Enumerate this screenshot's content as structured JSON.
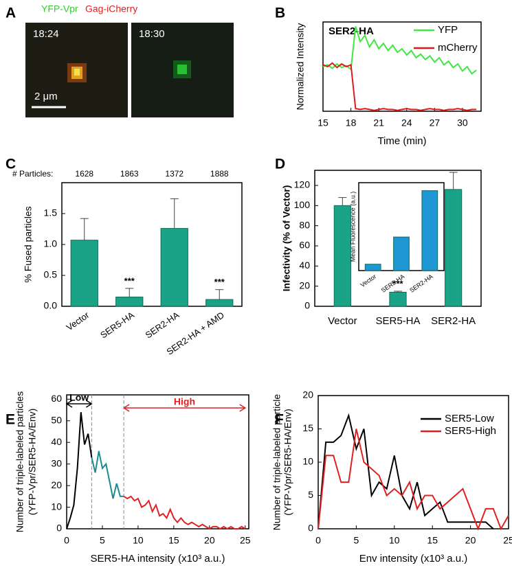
{
  "panel_a": {
    "panel": "A",
    "channels": [
      "YFP-Vpr",
      "Gag-iCherry"
    ],
    "frames": [
      "18:24",
      "18:30"
    ],
    "scale_bar": "2 μm"
  },
  "chart_data": [
    {
      "type": "line",
      "panel": "B",
      "title": "SER2-HA",
      "y_label": "Normalized Intensity",
      "x_label": "Time (min)",
      "xlim": [
        15,
        32
      ],
      "xticks": [
        15,
        18,
        21,
        24,
        27,
        30
      ],
      "ylim": [
        0,
        1
      ],
      "x": [
        15,
        15.5,
        16,
        16.5,
        17,
        17.5,
        18,
        18.5,
        19,
        19.5,
        20,
        20.5,
        21,
        21.5,
        22,
        22.5,
        23,
        23.5,
        24,
        24.5,
        25,
        25.5,
        26,
        26.5,
        27,
        27.5,
        28,
        28.5,
        29,
        29.5,
        30,
        30.5,
        31,
        31.5
      ],
      "series": [
        {
          "name": "YFP",
          "color": "#3ee83e",
          "values": [
            0.5,
            0.52,
            0.48,
            0.53,
            0.49,
            0.51,
            0.47,
            0.95,
            0.78,
            0.85,
            0.72,
            0.8,
            0.7,
            0.76,
            0.68,
            0.74,
            0.66,
            0.7,
            0.63,
            0.68,
            0.6,
            0.64,
            0.58,
            0.62,
            0.55,
            0.6,
            0.52,
            0.56,
            0.49,
            0.53,
            0.45,
            0.5,
            0.42,
            0.46
          ]
        },
        {
          "name": "mCherry",
          "color": "#e01818",
          "values": [
            0.52,
            0.5,
            0.54,
            0.49,
            0.53,
            0.5,
            0.52,
            0.03,
            0.02,
            0.03,
            0.02,
            0.01,
            0.02,
            0.03,
            0.02,
            0.02,
            0.01,
            0.02,
            0.03,
            0.02,
            0.02,
            0.01,
            0.02,
            0.03,
            0.02,
            0.02,
            0.01,
            0.02,
            0.02,
            0.03,
            0.02,
            0.01,
            0.02,
            0.02
          ]
        }
      ]
    },
    {
      "type": "bar",
      "panel": "C",
      "y_label": "% Fused particles",
      "counts_label": "# Particles:",
      "counts": [
        1628,
        1863,
        1372,
        1888
      ],
      "categories": [
        "Vector",
        "SER5-HA",
        "SER2-HA",
        "SER2-HA + AMD"
      ],
      "values": [
        1.07,
        0.15,
        1.26,
        0.11
      ],
      "errors": [
        0.35,
        0.14,
        0.48,
        0.16
      ],
      "significance": [
        null,
        "***",
        null,
        "***"
      ],
      "color": "#1aa386",
      "ylim": [
        0,
        2
      ],
      "yticks": [
        {
          "value": 0,
          "label": "0.0"
        },
        0.5,
        {
          "value": 1,
          "label": "1.0"
        },
        1.5
      ]
    },
    {
      "type": "bar",
      "panel": "D",
      "y_label": "Infectivity (% of Vector)",
      "categories": [
        "Vector",
        "SER5-HA",
        "SER2-HA"
      ],
      "values": [
        100,
        14,
        116
      ],
      "errors": [
        8,
        1,
        17
      ],
      "significance": [
        null,
        "***",
        null
      ],
      "color": "#1aa386",
      "ylim": [
        0,
        135
      ],
      "yticks": [
        0,
        20,
        40,
        60,
        80,
        100,
        120
      ]
    },
    {
      "type": "bar",
      "y_label": "Mean Fluorescence (a.u.)",
      "categories": [
        "Vector",
        "SER5-HA",
        "SER2-HA"
      ],
      "values": [
        0.08,
        0.42,
        1.0
      ],
      "color": "#1f97d4",
      "ylim": [
        0,
        1.1
      ]
    },
    {
      "type": "line",
      "panel": "E",
      "y_label": [
        "Number of triple-labeled particles",
        "(YFP-Vpr/SER5-HA/Env)"
      ],
      "x_label": "SER5-HA intensity (x10³ a.u.)",
      "xlim": [
        0,
        25.5
      ],
      "xticks": [
        0,
        5,
        10,
        15,
        20,
        25
      ],
      "ylim": [
        0,
        62
      ],
      "yticks": [
        0,
        10,
        20,
        30,
        40,
        50,
        60
      ],
      "ranges": [
        {
          "label": "Low",
          "from": 0,
          "to": 3.5,
          "color": "#000000"
        },
        {
          "label": "High",
          "from": 8,
          "to": 25,
          "color": "#e02020"
        }
      ],
      "series": [
        {
          "color": "#000000",
          "x": [
            0,
            0.5,
            1,
            1.5,
            2,
            2.5,
            3,
            3.5
          ],
          "values": [
            0,
            5,
            11,
            28,
            54,
            39,
            44,
            33
          ]
        },
        {
          "color": "#1b8a8f",
          "x": [
            3.5,
            4,
            4.5,
            5,
            5.5,
            6,
            6.5,
            7,
            7.5,
            8
          ],
          "values": [
            33,
            26,
            36,
            28,
            30,
            22,
            14,
            21,
            15,
            15
          ]
        },
        {
          "color": "#e02020",
          "x": [
            8,
            8.5,
            9,
            9.5,
            10,
            10.5,
            11,
            11.5,
            12,
            12.5,
            13,
            13.5,
            14,
            14.5,
            15,
            15.5,
            16,
            16.5,
            17,
            17.5,
            18,
            18.5,
            19,
            19.5,
            20,
            20.5,
            21,
            21.5,
            22,
            22.5,
            23,
            23.5,
            24,
            24.5,
            25
          ],
          "values": [
            15,
            14,
            15,
            13,
            14,
            10,
            11,
            13,
            8,
            11,
            6,
            7,
            5,
            9,
            5,
            3,
            5,
            3,
            2,
            3,
            2,
            1,
            2,
            1,
            0,
            1,
            1,
            0,
            1,
            0,
            1,
            0,
            0,
            1,
            0
          ]
        }
      ]
    },
    {
      "type": "line",
      "panel": "F",
      "y_label": [
        "Number of triple-labeled particle",
        "(YFP-Vpr/SER5-HA/Env)"
      ],
      "x_label": "Env intensity (x10³ a.u.)",
      "xlim": [
        0,
        25
      ],
      "xticks": [
        0,
        5,
        10,
        15,
        20,
        25
      ],
      "ylim": [
        0,
        20
      ],
      "yticks": [
        0,
        5,
        10,
        15,
        20
      ],
      "x": [
        0,
        1,
        2,
        3,
        4,
        5,
        6,
        7,
        8,
        9,
        10,
        11,
        12,
        13,
        14,
        15,
        16,
        17,
        18,
        19,
        20,
        21,
        22,
        23,
        24,
        25
      ],
      "series": [
        {
          "name": "SER5-Low",
          "color": "#000000",
          "values": [
            0,
            13,
            13,
            14,
            17,
            12,
            15,
            5,
            7,
            6,
            11,
            5,
            3,
            7,
            2,
            3,
            4,
            1,
            1,
            1,
            1,
            1,
            1,
            0,
            null,
            null
          ]
        },
        {
          "name": "SER5-High",
          "color": "#e02020",
          "values": [
            0,
            11,
            11,
            7,
            7,
            15,
            10,
            9,
            8,
            5,
            6,
            5,
            7,
            3,
            5,
            5,
            3,
            4,
            5,
            6,
            3,
            0,
            3,
            3,
            0,
            2
          ]
        }
      ]
    }
  ]
}
